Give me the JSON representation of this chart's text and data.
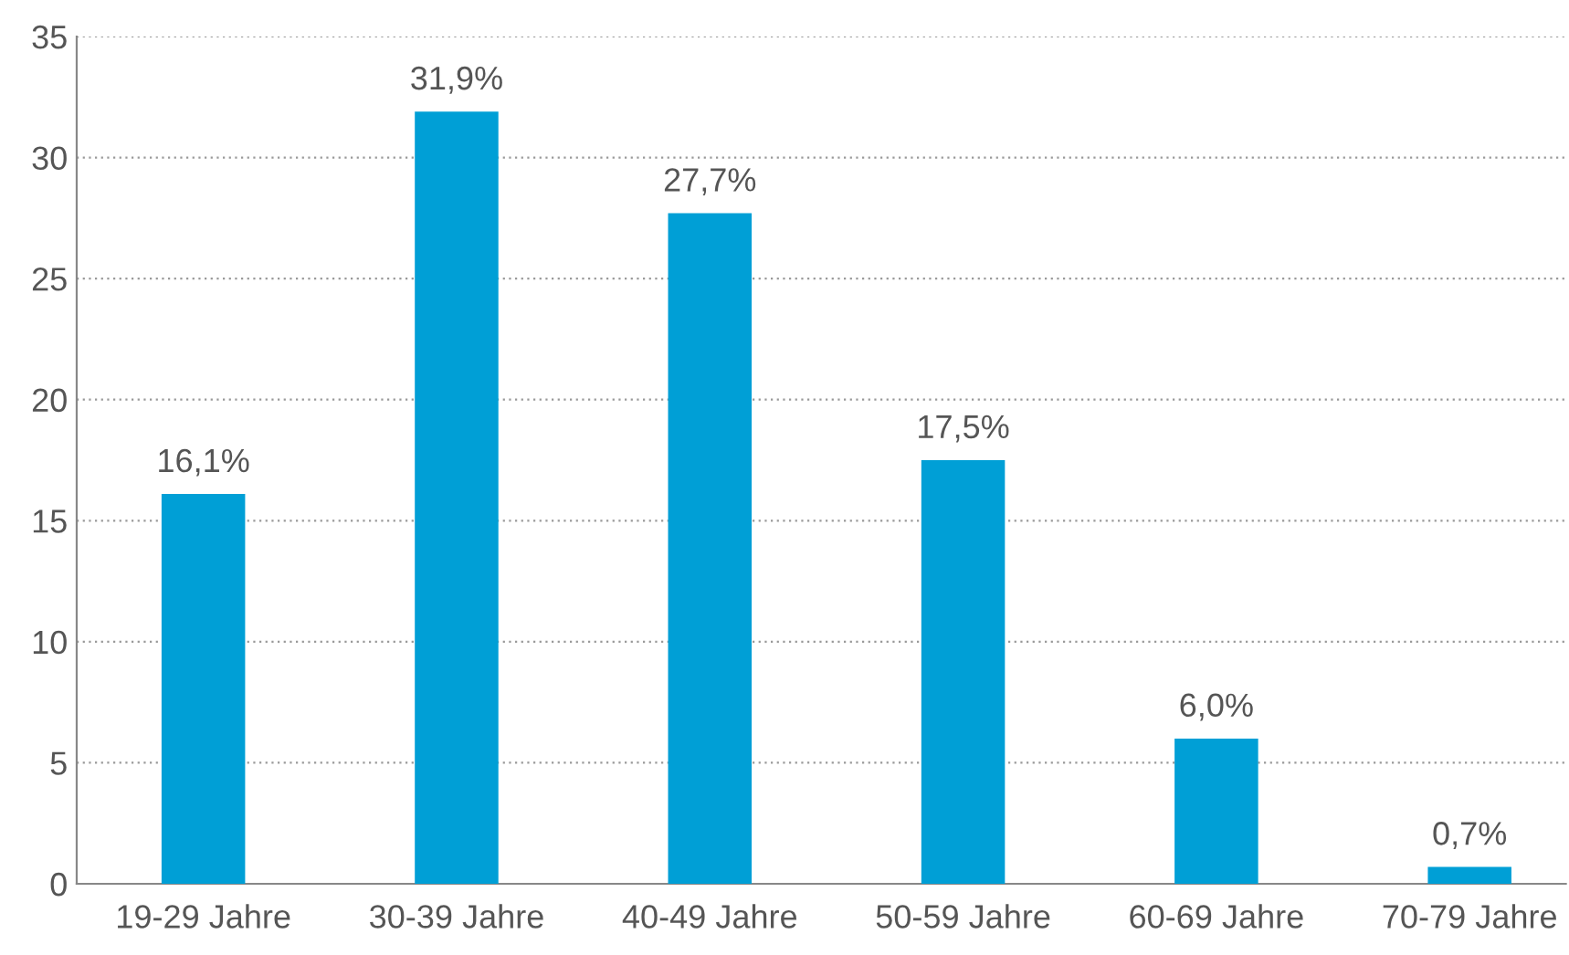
{
  "chart_data": {
    "type": "bar",
    "categories": [
      "19-29 Jahre",
      "30-39 Jahre",
      "40-49 Jahre",
      "50-59 Jahre",
      "60-69 Jahre",
      "70-79 Jahre"
    ],
    "values": [
      16.1,
      31.9,
      27.7,
      17.5,
      6.0,
      0.7
    ],
    "value_labels": [
      "16,1%",
      "31,9%",
      "27,7%",
      "17,5%",
      "6,0%",
      "0,7%"
    ],
    "color": "#009fd6",
    "ylim": [
      0,
      35
    ],
    "yticks": [
      0,
      5,
      10,
      15,
      20,
      25,
      30,
      35
    ],
    "grid": "y"
  }
}
